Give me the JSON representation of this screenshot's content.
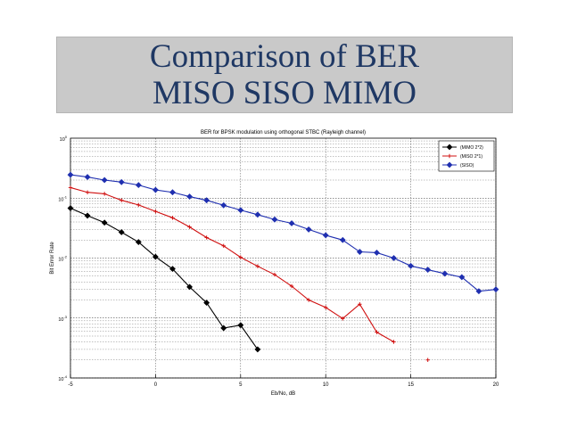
{
  "slide": {
    "title_line1": "Comparison of BER",
    "title_line2": "MISO SISO MIMO"
  },
  "chart_data": {
    "type": "line",
    "title": "BER for BPSK modulation using orthogonal STBC (Rayleigh channel)",
    "xlabel": "Eb/No, dB",
    "ylabel": "Bit Error Rate",
    "xlim": [
      -5,
      20
    ],
    "ylim": [
      0.0001,
      1
    ],
    "yscale": "log",
    "grid": true,
    "legend_position": "top-right",
    "x_ticks": [
      "-5",
      "0",
      "5",
      "10",
      "15",
      "20"
    ],
    "y_ticks": [
      {
        "base": "10",
        "exp": "0",
        "value": 1
      },
      {
        "base": "10",
        "exp": "-1",
        "value": 0.1
      },
      {
        "base": "10",
        "exp": "-2",
        "value": 0.01
      },
      {
        "base": "10",
        "exp": "-3",
        "value": 0.001
      },
      {
        "base": "10",
        "exp": "-4",
        "value": 0.0001
      }
    ],
    "series": [
      {
        "name": "(MIMO 2*2)",
        "color": "#000000",
        "marker": "diamond",
        "x": [
          -5,
          -4,
          -3,
          -2,
          -1,
          0,
          1,
          2,
          3,
          4,
          5,
          6
        ],
        "y": [
          0.068,
          0.051,
          0.039,
          0.027,
          0.0185,
          0.0105,
          0.0066,
          0.0033,
          0.0018,
          0.00068,
          0.00076,
          0.0003
        ]
      },
      {
        "name": "(MISO 2*1)",
        "color": "#d01010",
        "marker": "plus",
        "x": [
          -5,
          -4,
          -3,
          -2,
          -1,
          0,
          1,
          2,
          3,
          4,
          5,
          6,
          7,
          8,
          9,
          10,
          11,
          12,
          13,
          14,
          16
        ],
        "y": [
          0.15,
          0.125,
          0.118,
          0.092,
          0.077,
          0.06,
          0.047,
          0.033,
          0.022,
          0.016,
          0.0103,
          0.0073,
          0.0053,
          0.0034,
          0.002,
          0.0015,
          0.00098,
          0.0017,
          0.00058,
          0.0004,
          0.0002
        ]
      },
      {
        "name": "(SISO)",
        "color": "#1f2fb0",
        "marker": "diamond",
        "x": [
          -5,
          -4,
          -3,
          -2,
          -1,
          0,
          1,
          2,
          3,
          4,
          5,
          6,
          7,
          8,
          9,
          10,
          11,
          12,
          13,
          14,
          15,
          16,
          17,
          18,
          19,
          20
        ],
        "y": [
          0.245,
          0.225,
          0.2,
          0.185,
          0.165,
          0.137,
          0.125,
          0.106,
          0.092,
          0.076,
          0.063,
          0.053,
          0.044,
          0.038,
          0.03,
          0.024,
          0.02,
          0.0127,
          0.0123,
          0.01,
          0.0074,
          0.0064,
          0.0055,
          0.0048,
          0.0028,
          0.003
        ]
      }
    ]
  }
}
